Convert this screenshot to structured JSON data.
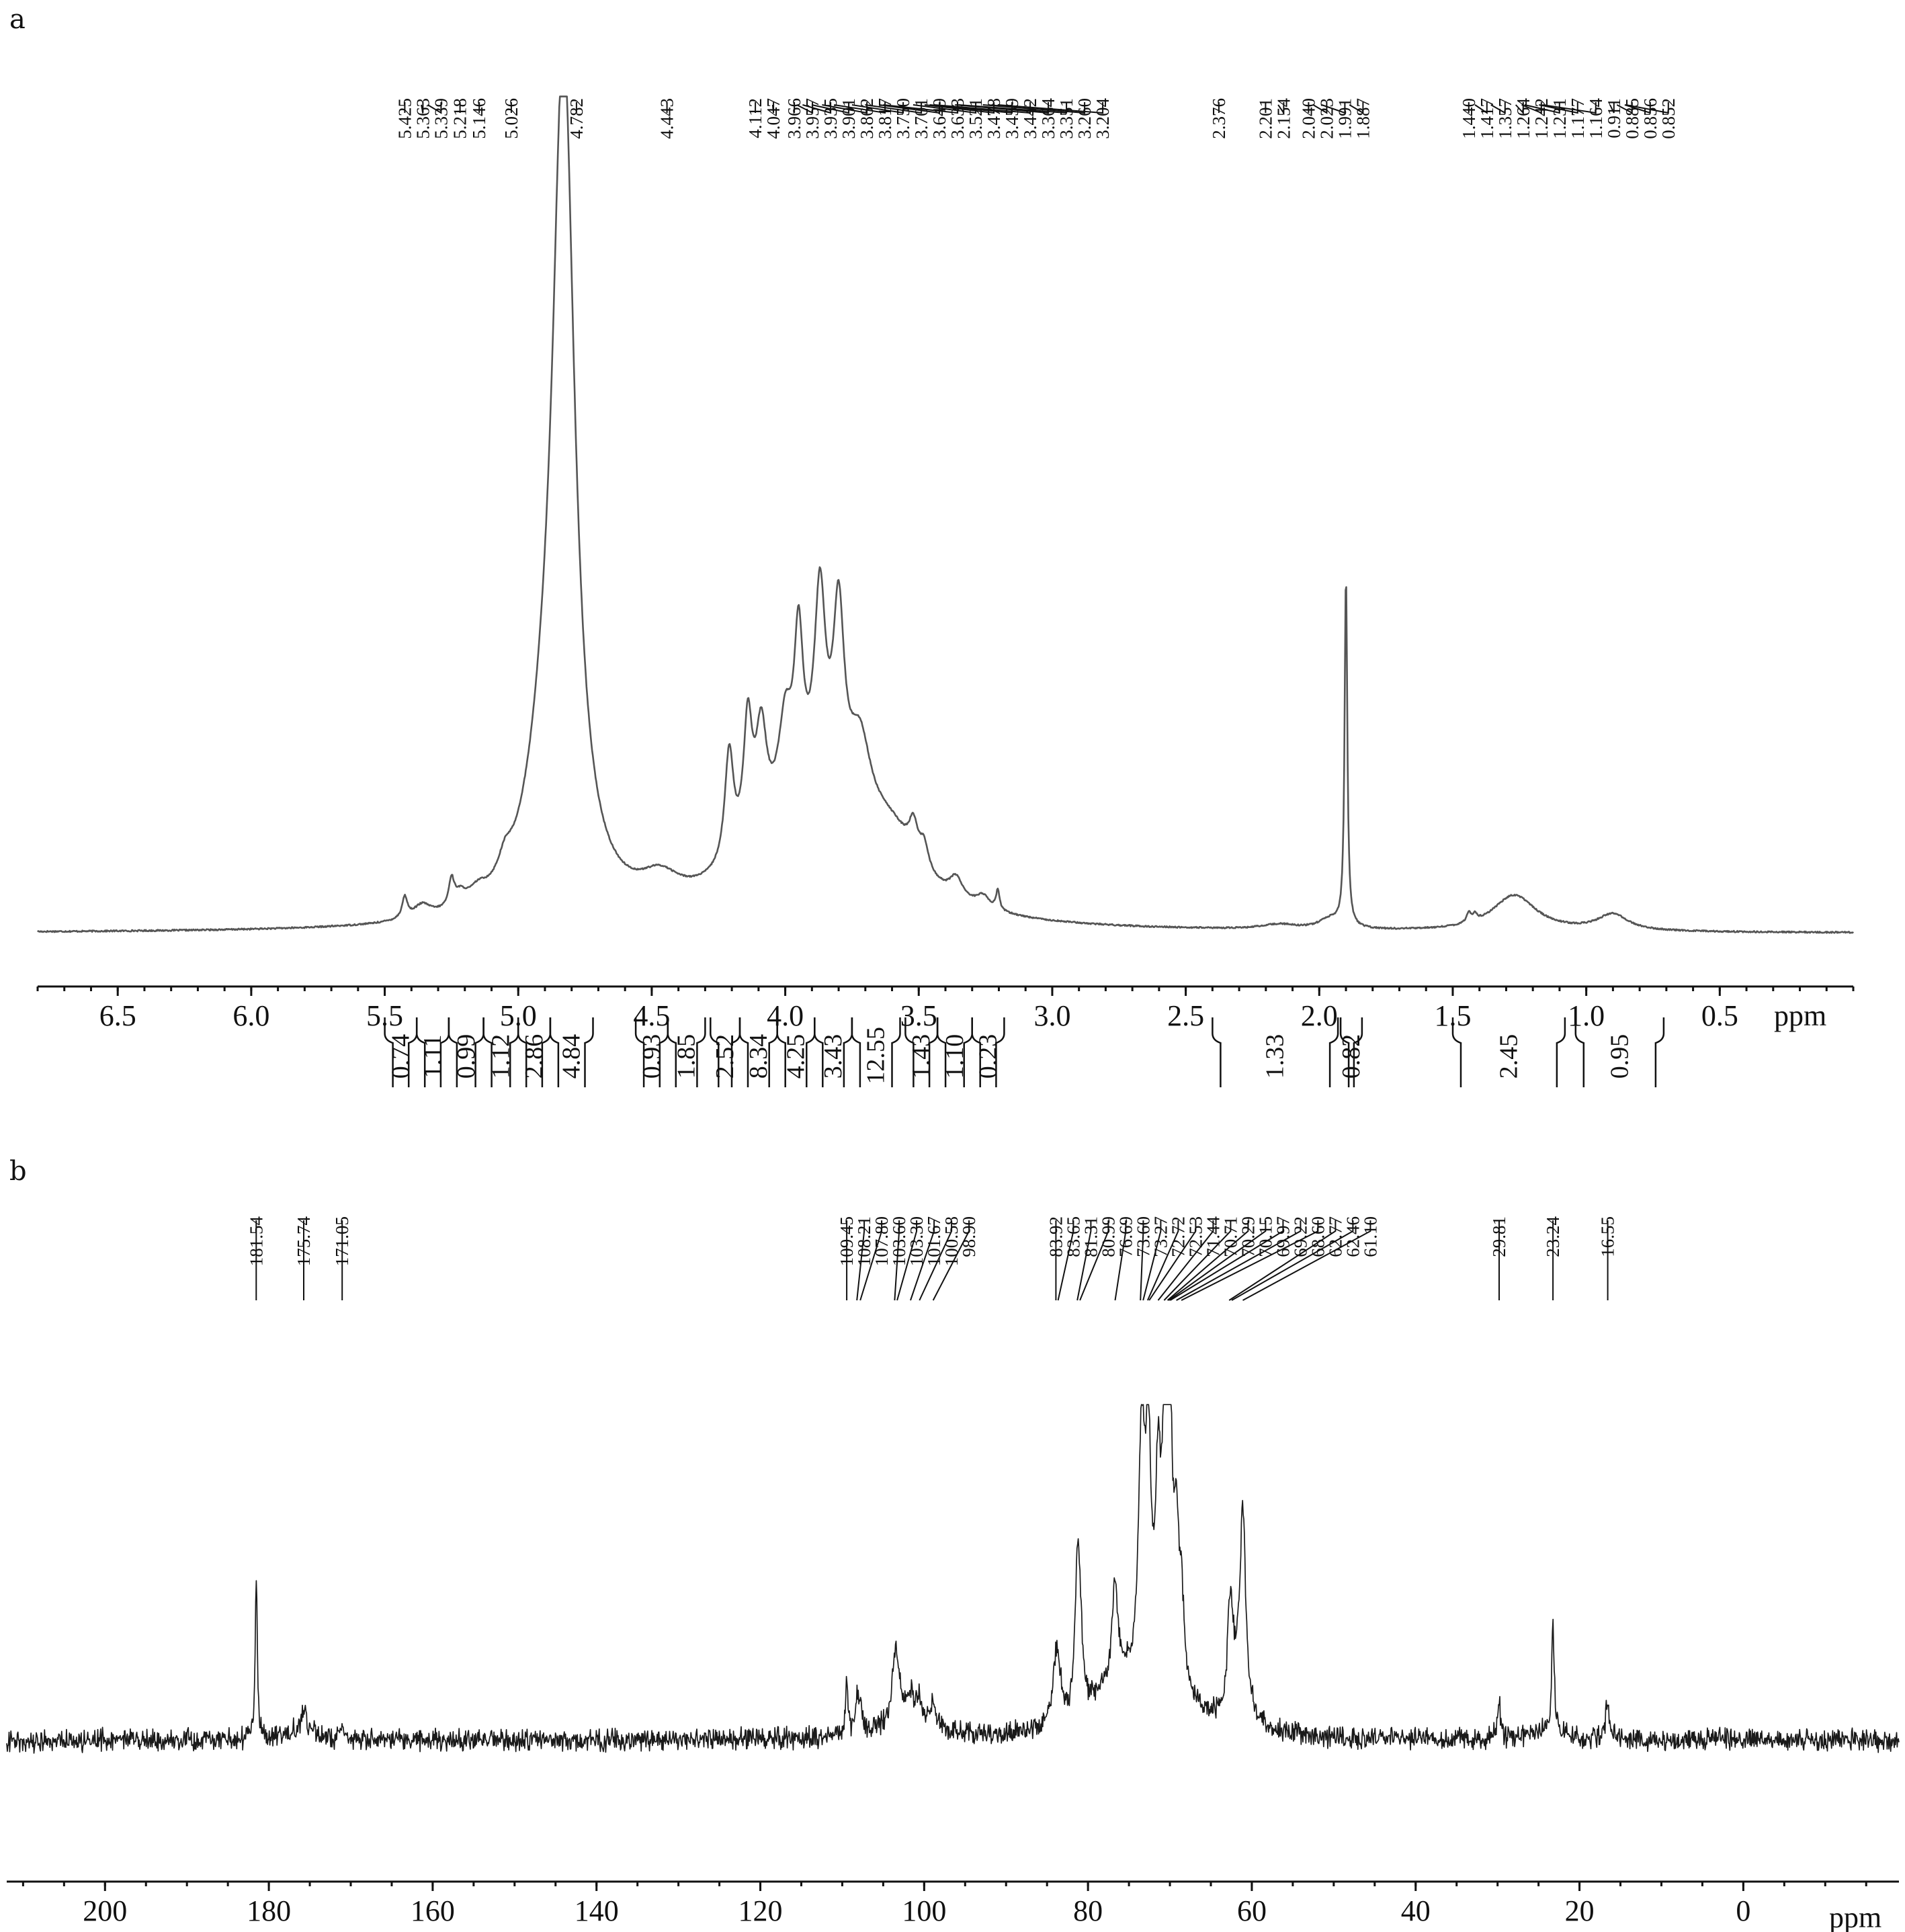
{
  "chart_data": [
    {
      "type": "line",
      "panel": "a",
      "xunit": "ppm",
      "xlim": [
        6.8,
        0.0
      ],
      "x_ticks": [
        "6.5",
        "6.0",
        "5.5",
        "5.0",
        "4.5",
        "4.0",
        "3.5",
        "3.0",
        "2.5",
        "2.0",
        "1.5",
        "1.0",
        "0.5"
      ],
      "peak_labels": [
        "5.425",
        "5.363",
        "5.339",
        "5.218",
        "5.146",
        "5.026",
        "4.782",
        "4.443",
        "4.112",
        "4.047",
        "3.966",
        "3.957",
        "3.935",
        "3.901",
        "3.862",
        "3.817",
        "3.750",
        "3.701",
        "3.649",
        "3.633",
        "3.521",
        "3.478",
        "3.459",
        "3.442",
        "3.364",
        "3.351",
        "3.260",
        "3.204",
        "2.376",
        "2.201",
        "2.154",
        "2.040",
        "2.023",
        "1.991",
        "1.887",
        "1.440",
        "1.417",
        "1.357",
        "1.264",
        "1.242",
        "1.231",
        "1.177",
        "1.164",
        "0.911",
        "0.885",
        "0.856",
        "0.852"
      ],
      "integrals": [
        {
          "label": "0.74",
          "range": [
            5.5,
            5.38
          ]
        },
        {
          "label": "1.11",
          "range": [
            5.38,
            5.26
          ]
        },
        {
          "label": "0.99",
          "range": [
            5.26,
            5.13
          ]
        },
        {
          "label": "1.12",
          "range": [
            5.13,
            5.0
          ]
        },
        {
          "label": "2.86",
          "range": [
            5.0,
            4.88
          ]
        },
        {
          "label": "4.84",
          "range": [
            4.88,
            4.72
          ]
        },
        {
          "label": "0.93",
          "range": [
            4.56,
            4.44
          ]
        },
        {
          "label": "1.85",
          "range": [
            4.44,
            4.3
          ]
        },
        {
          "label": "2.52",
          "range": [
            4.28,
            4.17
          ]
        },
        {
          "label": "8.34",
          "range": [
            4.17,
            4.03
          ]
        },
        {
          "label": "4.25",
          "range": [
            4.03,
            3.89
          ]
        },
        {
          "label": "3.43",
          "range": [
            3.89,
            3.75
          ]
        },
        {
          "label": "12.55",
          "range": [
            3.75,
            3.57
          ]
        },
        {
          "label": "1.43",
          "range": [
            3.55,
            3.43
          ]
        },
        {
          "label": "1.10",
          "range": [
            3.43,
            3.3
          ]
        },
        {
          "label": "0.23",
          "range": [
            3.3,
            3.18
          ]
        },
        {
          "label": "1.33",
          "range": [
            2.4,
            1.93
          ]
        },
        {
          "label": "0.82",
          "range": [
            1.92,
            1.84
          ]
        },
        {
          "label": "2.45",
          "range": [
            1.5,
            1.08
          ]
        },
        {
          "label": "0.95",
          "range": [
            1.04,
            0.71
          ]
        }
      ],
      "peaks": [
        {
          "x": 4.83,
          "y": 100,
          "w": 0.05
        },
        {
          "x": 4.9,
          "y": 12,
          "w": 0.09
        },
        {
          "x": 5.425,
          "y": 2.6,
          "w": 0.012
        },
        {
          "x": 5.36,
          "y": 1.6,
          "w": 0.04
        },
        {
          "x": 5.25,
          "y": 3.2,
          "w": 0.012
        },
        {
          "x": 5.218,
          "y": 1.6,
          "w": 0.03
        },
        {
          "x": 5.15,
          "y": 1.5,
          "w": 0.04
        },
        {
          "x": 5.05,
          "y": 2.4,
          "w": 0.03
        },
        {
          "x": 4.47,
          "y": 3.0,
          "w": 0.09
        },
        {
          "x": 4.21,
          "y": 13.5,
          "w": 0.02
        },
        {
          "x": 4.14,
          "y": 15.0,
          "w": 0.02
        },
        {
          "x": 4.09,
          "y": 12.5,
          "w": 0.025
        },
        {
          "x": 4.0,
          "y": 10.0,
          "w": 0.03
        },
        {
          "x": 3.95,
          "y": 18.0,
          "w": 0.02
        },
        {
          "x": 3.87,
          "y": 23.0,
          "w": 0.025
        },
        {
          "x": 3.8,
          "y": 22.0,
          "w": 0.025
        },
        {
          "x": 3.72,
          "y": 10.0,
          "w": 0.05
        },
        {
          "x": 3.9,
          "y": 15.0,
          "w": 0.25
        },
        {
          "x": 3.6,
          "y": 6.0,
          "w": 0.12
        },
        {
          "x": 3.52,
          "y": 4.0,
          "w": 0.02
        },
        {
          "x": 3.48,
          "y": 3.0,
          "w": 0.02
        },
        {
          "x": 3.36,
          "y": 2.5,
          "w": 0.03
        },
        {
          "x": 3.26,
          "y": 1.5,
          "w": 0.03
        },
        {
          "x": 3.204,
          "y": 2.4,
          "w": 0.008
        },
        {
          "x": 1.9,
          "y": 43.0,
          "w": 0.006
        },
        {
          "x": 1.96,
          "y": 1.2,
          "w": 0.05
        },
        {
          "x": 2.15,
          "y": 0.6,
          "w": 0.08
        },
        {
          "x": 1.27,
          "y": 4.4,
          "w": 0.1
        },
        {
          "x": 1.44,
          "y": 1.2,
          "w": 0.01
        },
        {
          "x": 1.417,
          "y": 0.8,
          "w": 0.01
        },
        {
          "x": 0.9,
          "y": 2.0,
          "w": 0.07
        }
      ]
    },
    {
      "type": "line",
      "panel": "b",
      "xunit": "ppm",
      "xlim": [
        212.0,
        -19.0
      ],
      "x_ticks": [
        "200",
        "180",
        "160",
        "140",
        "120",
        "100",
        "80",
        "60",
        "40",
        "20",
        "0"
      ],
      "peak_labels": [
        "181.54",
        "175.74",
        "171.05",
        "109.45",
        "108.21",
        "107.80",
        "103.60",
        "103.30",
        "101.67",
        "100.58",
        "98.90",
        "83.92",
        "83.65",
        "81.31",
        "80.99",
        "76.69",
        "73.60",
        "73.27",
        "72.72",
        "72.53",
        "71.44",
        "70.71",
        "70.29",
        "70.15",
        "69.97",
        "69.22",
        "68.60",
        "62.77",
        "62.46",
        "61.10",
        "29.81",
        "23.24",
        "16.55"
      ],
      "peaks": [
        {
          "x": 181.54,
          "y": 50,
          "w": 0.15
        },
        {
          "x": 175.74,
          "y": 5.5,
          "w": 0.4
        },
        {
          "x": 176.0,
          "y": 3.0,
          "w": 2.5
        },
        {
          "x": 171.05,
          "y": 4.0,
          "w": 0.2
        },
        {
          "x": 109.45,
          "y": 16.5,
          "w": 0.2
        },
        {
          "x": 108.21,
          "y": 10.0,
          "w": 0.2
        },
        {
          "x": 107.8,
          "y": 9.0,
          "w": 0.25
        },
        {
          "x": 103.6,
          "y": 13.0,
          "w": 0.4
        },
        {
          "x": 103.3,
          "y": 12.0,
          "w": 0.4
        },
        {
          "x": 101.67,
          "y": 7.0,
          "w": 0.5
        },
        {
          "x": 100.58,
          "y": 7.0,
          "w": 0.5
        },
        {
          "x": 98.9,
          "y": 8.0,
          "w": 0.4
        },
        {
          "x": 102.5,
          "y": 6.0,
          "w": 3.0
        },
        {
          "x": 83.92,
          "y": 14.0,
          "w": 0.5
        },
        {
          "x": 83.65,
          "y": 10.0,
          "w": 0.5
        },
        {
          "x": 81.31,
          "y": 38.0,
          "w": 0.35
        },
        {
          "x": 80.99,
          "y": 22.0,
          "w": 0.35
        },
        {
          "x": 76.69,
          "y": 30.0,
          "w": 0.4
        },
        {
          "x": 73.6,
          "y": 42.0,
          "w": 0.35
        },
        {
          "x": 73.27,
          "y": 38.0,
          "w": 0.35
        },
        {
          "x": 72.72,
          "y": 36.0,
          "w": 0.35
        },
        {
          "x": 72.53,
          "y": 33.0,
          "w": 0.35
        },
        {
          "x": 71.44,
          "y": 52.0,
          "w": 0.35
        },
        {
          "x": 70.71,
          "y": 50.0,
          "w": 0.35
        },
        {
          "x": 70.29,
          "y": 45.0,
          "w": 0.3
        },
        {
          "x": 70.15,
          "y": 40.0,
          "w": 0.3
        },
        {
          "x": 69.97,
          "y": 44.0,
          "w": 0.3
        },
        {
          "x": 69.22,
          "y": 40.0,
          "w": 0.35
        },
        {
          "x": 68.6,
          "y": 26.0,
          "w": 0.4
        },
        {
          "x": 72.5,
          "y": 18.0,
          "w": 4.5
        },
        {
          "x": 77.5,
          "y": 8.0,
          "w": 3.0
        },
        {
          "x": 62.77,
          "y": 20.0,
          "w": 0.3
        },
        {
          "x": 62.46,
          "y": 18.0,
          "w": 0.3
        },
        {
          "x": 61.1,
          "y": 58.0,
          "w": 0.4
        },
        {
          "x": 61.6,
          "y": 12.0,
          "w": 1.2
        },
        {
          "x": 29.81,
          "y": 12.0,
          "w": 0.2
        },
        {
          "x": 23.24,
          "y": 33.0,
          "w": 0.18
        },
        {
          "x": 16.55,
          "y": 12.0,
          "w": 0.25
        },
        {
          "x": 24.0,
          "y": 3.0,
          "w": 2.0
        }
      ]
    }
  ],
  "labels": {
    "panel_a": "a",
    "panel_b": "b",
    "unit_a": "ppm",
    "unit_b": "ppm"
  },
  "colors": {
    "spectrum_a": "#555555",
    "spectrum_b": "#1a1a1a",
    "axis": "#111111"
  }
}
